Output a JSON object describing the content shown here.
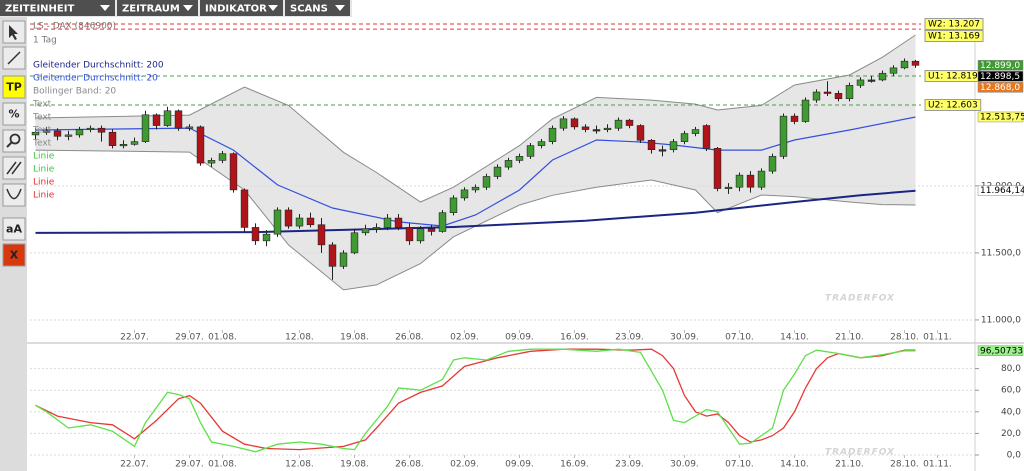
{
  "menu": [
    "ZEITEINHEIT",
    "ZEITRAUM",
    "INDIKATOR",
    "SCANS"
  ],
  "toolbar": [
    "TP",
    "%",
    "aA",
    "X"
  ],
  "chart_data": [
    {
      "type": "candlestick",
      "title": "LS - DAX (846900)",
      "subtitle": "1 Tag",
      "open": [
        12380,
        12400,
        12410,
        12370,
        12380,
        12420,
        12430,
        12400,
        12300,
        12310,
        12330,
        12530,
        12450,
        12560,
        12430,
        12440,
        12170,
        12190,
        12240,
        11970,
        11690,
        11590,
        11640,
        11820,
        11700,
        11760,
        11710,
        11560,
        11400,
        11500,
        11650,
        11680,
        11690,
        11760,
        11690,
        11590,
        11680,
        11660,
        11800,
        11910,
        11970,
        11990,
        12070,
        12140,
        12190,
        12220,
        12300,
        12330,
        12430,
        12500,
        12440,
        12420,
        12420,
        12430,
        12490,
        12450,
        12340,
        12270,
        12270,
        12330,
        12390,
        12450,
        12280,
        11980,
        11990,
        12080,
        11990,
        12110,
        12220,
        12520,
        12480,
        12640,
        12700,
        12690,
        12650,
        12750,
        12790,
        12790,
        12840,
        12880,
        12930
      ],
      "high": [
        12430,
        12440,
        12430,
        12410,
        12440,
        12450,
        12450,
        12420,
        12340,
        12360,
        12560,
        12540,
        12590,
        12570,
        12460,
        12450,
        12210,
        12260,
        12250,
        11980,
        11720,
        11670,
        11840,
        11840,
        11790,
        11800,
        11760,
        11580,
        11520,
        11680,
        11710,
        11720,
        11790,
        11790,
        11720,
        11700,
        11710,
        11820,
        11930,
        11990,
        12010,
        12090,
        12160,
        12210,
        12240,
        12320,
        12350,
        12450,
        12520,
        12510,
        12460,
        12450,
        12460,
        12510,
        12500,
        12460,
        12350,
        12300,
        12350,
        12410,
        12440,
        12460,
        12290,
        12020,
        12100,
        12110,
        12130,
        12240,
        12540,
        12540,
        12660,
        12720,
        12780,
        12710,
        12770,
        12810,
        12820,
        12860,
        12900,
        12950,
        12940
      ],
      "low": [
        12350,
        12380,
        12340,
        12340,
        12360,
        12400,
        12330,
        12280,
        12280,
        12300,
        12320,
        12420,
        12440,
        12410,
        12410,
        12150,
        12140,
        12170,
        11950,
        11660,
        11560,
        11550,
        11620,
        11680,
        11680,
        11690,
        11500,
        11300,
        11380,
        11490,
        11630,
        11650,
        11670,
        11670,
        11560,
        11570,
        11630,
        11650,
        11780,
        11890,
        11950,
        11970,
        12050,
        12120,
        12170,
        12200,
        12280,
        12310,
        12410,
        12420,
        12400,
        12390,
        12400,
        12410,
        12430,
        12320,
        12240,
        12220,
        12250,
        12310,
        12370,
        12260,
        11960,
        11940,
        11960,
        11950,
        11970,
        12090,
        12200,
        12460,
        12470,
        12620,
        12670,
        12630,
        12630,
        12730,
        12770,
        12780,
        12820,
        12870,
        12880
      ],
      "close": [
        12400,
        12410,
        12370,
        12380,
        12420,
        12430,
        12400,
        12300,
        12310,
        12330,
        12530,
        12450,
        12560,
        12430,
        12440,
        12170,
        12190,
        12240,
        11970,
        11690,
        11590,
        11640,
        11820,
        11700,
        11760,
        11710,
        11560,
        11400,
        11500,
        11650,
        11680,
        11690,
        11760,
        11690,
        11590,
        11680,
        11660,
        11800,
        11910,
        11970,
        11990,
        12070,
        12140,
        12190,
        12220,
        12300,
        12330,
        12430,
        12500,
        12440,
        12420,
        12420,
        12430,
        12490,
        12450,
        12340,
        12270,
        12270,
        12330,
        12390,
        12420,
        12280,
        11980,
        11990,
        12080,
        11990,
        12110,
        12220,
        12520,
        12480,
        12640,
        12700,
        12690,
        12650,
        12750,
        12790,
        12790,
        12840,
        12880,
        12930,
        12899
      ],
      "up_color": "#3f9a32",
      "down_color": "#b0141a",
      "flat_color": "#333333",
      "series": [
        {
          "name": "Gleitender Durchschnitt: 200",
          "color": "#1b2585",
          "x": [
            0,
            20,
            38,
            50,
            60,
            69,
            75,
            80
          ],
          "values": [
            11649,
            11655,
            11693,
            11740,
            11800,
            11880,
            11930,
            11964.14
          ]
        },
        {
          "name": "Gleitender Durchschnitt: 20",
          "color": "#3550e0",
          "x": [
            0,
            14,
            18,
            22,
            27,
            33,
            37,
            40,
            44,
            47,
            51,
            55,
            58,
            62,
            66,
            69,
            74,
            80
          ],
          "values": [
            12417,
            12431,
            12267,
            12007,
            11835,
            11731,
            11701,
            11783,
            11969,
            12193,
            12342,
            12327,
            12305,
            12267,
            12267,
            12342,
            12417,
            12513.75
          ]
        },
        {
          "name": "Bollinger Band: 20",
          "color": "#8a8a8a",
          "fill": "#dedede",
          "x": [
            0,
            14,
            19,
            23,
            28,
            31,
            35,
            38,
            44,
            47,
            51,
            56,
            60,
            62,
            66,
            69,
            74,
            77,
            80
          ],
          "upper": [
            12506,
            12528,
            12737,
            12600,
            12250,
            12100,
            11880,
            11990,
            12300,
            12500,
            12660,
            12640,
            12610,
            12566,
            12600,
            12752,
            12827,
            12960,
            13125
          ],
          "lower": [
            12267,
            12252,
            11969,
            11560,
            11224,
            11261,
            11420,
            11620,
            11857,
            11930,
            11990,
            12044,
            11969,
            11800,
            11932,
            11920,
            11880,
            11860,
            11857
          ]
        }
      ],
      "drawing_layers": [
        {
          "name": "Text",
          "color": "#8a8a8a"
        },
        {
          "name": "Text",
          "color": "#8a8a8a"
        },
        {
          "name": "Text",
          "color": "#8a8a8a"
        },
        {
          "name": "Text",
          "color": "#8a8a8a"
        },
        {
          "name": "Linie",
          "color": "#3cc43c"
        },
        {
          "name": "Linie",
          "color": "#3cc43c"
        },
        {
          "name": "Linie",
          "color": "#e03030"
        },
        {
          "name": "Linie",
          "color": "#e03030"
        }
      ],
      "levels": [
        {
          "value": 13207,
          "label": "W2: 13.207",
          "color": "#e53935"
        },
        {
          "value": 13169,
          "label": "W1: 13.169",
          "color": "#e53935"
        },
        {
          "value": 12819,
          "label": "U1: 12.819",
          "color": "#43a047"
        },
        {
          "value": 12603,
          "label": "U2: 12.603",
          "color": "#43a047"
        }
      ],
      "price_labels": [
        {
          "value": 12899,
          "label": "12.899,0",
          "color": "#3f9a32",
          "text_color": "#ffffff"
        },
        {
          "value": 12898.5,
          "label": "12.898,5",
          "color": "#000000",
          "text_color": "#ffffff"
        },
        {
          "value": 12868,
          "label": "12.868,0",
          "color": "#e8781e",
          "text_color": "#ffffff"
        },
        {
          "value": 12513.75,
          "label": "12.513,75",
          "color": "#ffff66",
          "text_color": "#000000"
        },
        {
          "value": 11964.14,
          "label": "11.964,14",
          "color": "#ffffff",
          "text_color": "#000000"
        }
      ],
      "ylim": [
        10925,
        13252
      ],
      "yticks": [
        {
          "value": 11000,
          "label": "11.000,0"
        },
        {
          "value": 11500,
          "label": "11.500,0"
        },
        {
          "value": 12000,
          "label": "12.000,0"
        }
      ],
      "xlim": [
        -0.5,
        80.5
      ],
      "xticks": [
        {
          "value": 9,
          "label": "22.07."
        },
        {
          "value": 14,
          "label": "29.07."
        },
        {
          "value": 17,
          "label": "01.08."
        },
        {
          "value": 24,
          "label": "12.08."
        },
        {
          "value": 29,
          "label": "19.08."
        },
        {
          "value": 34,
          "label": "26.08."
        },
        {
          "value": 39,
          "label": "02.09."
        },
        {
          "value": 44,
          "label": "09.09."
        },
        {
          "value": 49,
          "label": "16.09."
        },
        {
          "value": 54,
          "label": "23.09."
        },
        {
          "value": 59,
          "label": "30.09."
        },
        {
          "value": 64,
          "label": "07.10."
        },
        {
          "value": 69,
          "label": "14.10."
        },
        {
          "value": 74,
          "label": "21.10."
        },
        {
          "value": 79,
          "label": "28.10."
        },
        {
          "value": 82,
          "label": "01.11."
        }
      ],
      "grid": true,
      "watermark": "TRADERFOX"
    },
    {
      "type": "line",
      "series": [
        {
          "color": "#e53935",
          "x": [
            0,
            2,
            5,
            7,
            9,
            11,
            13,
            14,
            15,
            17,
            19,
            21,
            24,
            28,
            30,
            31,
            33,
            35,
            37,
            39,
            42,
            45,
            48,
            51,
            54,
            56,
            57,
            58,
            59,
            60,
            61,
            62,
            63,
            64,
            65,
            66,
            67,
            68,
            69,
            70,
            71,
            72,
            73,
            75,
            77,
            79,
            80
          ],
          "values": [
            46,
            36,
            30,
            28,
            15,
            32,
            52,
            55,
            48,
            22,
            10,
            6,
            5,
            8,
            14,
            25,
            48,
            58,
            64,
            82,
            90,
            96,
            98,
            98,
            97,
            98,
            92,
            80,
            55,
            40,
            36,
            38,
            30,
            18,
            12,
            14,
            18,
            25,
            40,
            62,
            80,
            90,
            94,
            90,
            92,
            97,
            97
          ]
        },
        {
          "color": "#5ee04a",
          "x": [
            0,
            1,
            3,
            5,
            7,
            9,
            10,
            12,
            13,
            14,
            15,
            16,
            18,
            20,
            22,
            24,
            26,
            28,
            29,
            30,
            32,
            33,
            35,
            37,
            38,
            39,
            41,
            43,
            45,
            48,
            51,
            53,
            55,
            57,
            58,
            59,
            60,
            61,
            62,
            63,
            64,
            65,
            66,
            67,
            68,
            69,
            70,
            71,
            73,
            75,
            77,
            79,
            80
          ],
          "values": [
            46,
            40,
            25,
            28,
            22,
            8,
            30,
            58,
            56,
            52,
            30,
            12,
            8,
            3,
            10,
            12,
            10,
            6,
            5,
            20,
            45,
            62,
            60,
            70,
            88,
            90,
            88,
            96,
            98,
            98,
            96,
            98,
            95,
            60,
            32,
            30,
            36,
            42,
            40,
            25,
            10,
            11,
            18,
            25,
            60,
            75,
            92,
            97,
            94,
            90,
            93,
            96.5,
            96.50733
          ]
        }
      ],
      "price_labels": [
        {
          "value": 96.50733,
          "label": "96,50733",
          "color": "#9cf08c",
          "text_color": "#000000"
        }
      ],
      "ylim": [
        0,
        100
      ],
      "yticks": [
        {
          "value": 0,
          "label": "0,0"
        },
        {
          "value": 20,
          "label": "20,0"
        },
        {
          "value": 40,
          "label": "40,0"
        },
        {
          "value": 60,
          "label": "60,0"
        },
        {
          "value": 80,
          "label": "80,0"
        }
      ],
      "xlim": [
        -0.5,
        80.5
      ],
      "xticks": [
        {
          "value": 9,
          "label": "22.07."
        },
        {
          "value": 14,
          "label": "29.07."
        },
        {
          "value": 17,
          "label": "01.08."
        },
        {
          "value": 24,
          "label": "12.08."
        },
        {
          "value": 29,
          "label": "19.08."
        },
        {
          "value": 34,
          "label": "26.08."
        },
        {
          "value": 39,
          "label": "02.09."
        },
        {
          "value": 44,
          "label": "09.09."
        },
        {
          "value": 49,
          "label": "16.09."
        },
        {
          "value": 54,
          "label": "23.09."
        },
        {
          "value": 59,
          "label": "30.09."
        },
        {
          "value": 64,
          "label": "07.10."
        },
        {
          "value": 69,
          "label": "14.10."
        },
        {
          "value": 74,
          "label": "21.10."
        },
        {
          "value": 79,
          "label": "28.10."
        },
        {
          "value": 82,
          "label": "01.11."
        }
      ],
      "grid": true,
      "watermark": "TRADERFOX"
    }
  ]
}
